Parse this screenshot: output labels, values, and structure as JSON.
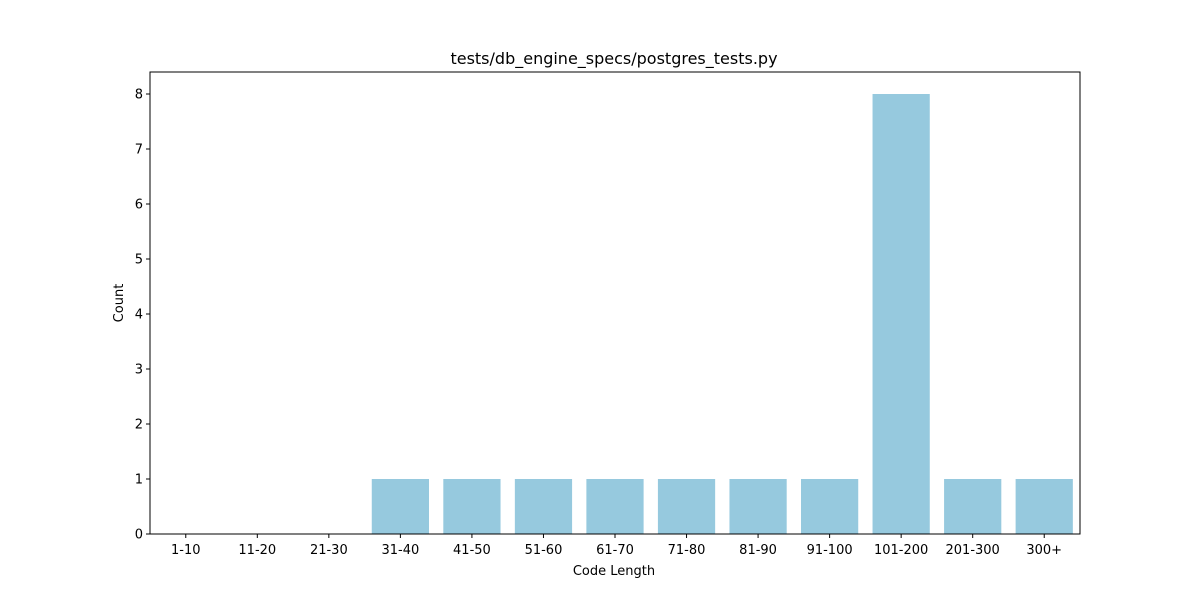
{
  "chart_data": {
    "type": "bar",
    "title": "tests/db_engine_specs/postgres_tests.py",
    "xlabel": "Code Length",
    "ylabel": "Count",
    "categories": [
      "1-10",
      "11-20",
      "21-30",
      "31-40",
      "41-50",
      "51-60",
      "61-70",
      "71-80",
      "81-90",
      "91-100",
      "101-200",
      "201-300",
      "300+"
    ],
    "values": [
      0,
      0,
      0,
      1,
      1,
      1,
      1,
      1,
      1,
      1,
      8,
      1,
      1
    ],
    "ylim": [
      0,
      8.4
    ],
    "yticks": [
      0,
      1,
      2,
      3,
      4,
      5,
      6,
      7,
      8
    ],
    "bar_color": "#96c9de",
    "grid": false,
    "legend": "none"
  }
}
